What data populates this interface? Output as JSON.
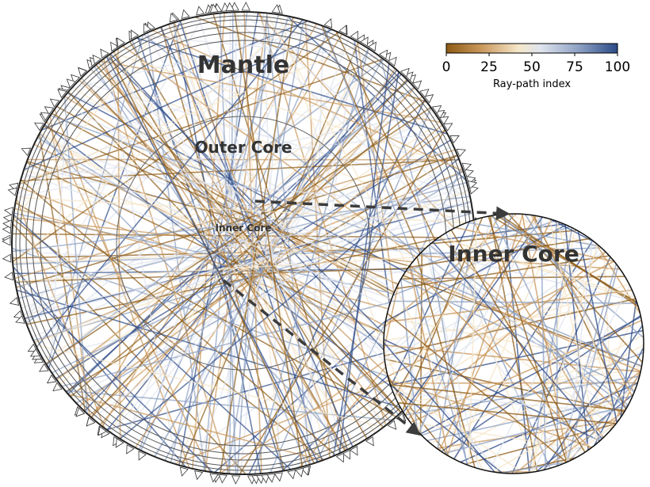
{
  "labels": {
    "mantle": "Mantle",
    "outer_core": "Outer Core",
    "inner_core_small": "Inner Core",
    "inner_core_zoom": "Inner Core"
  },
  "colorbar": {
    "ticks": [
      "0",
      "25",
      "50",
      "75",
      "100"
    ],
    "label": "Ray-path index",
    "colors": [
      "#8c5a14",
      "#c8965a",
      "#f5e6c8",
      "#dfe4ee",
      "#8b9fc2",
      "#2c4a87"
    ]
  },
  "colors": {
    "ring": "#555555",
    "outline": "#222222",
    "arrow": "#3c3c3c",
    "text": "#333333"
  }
}
